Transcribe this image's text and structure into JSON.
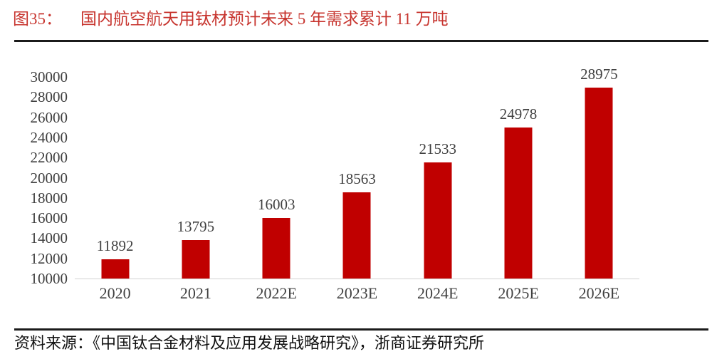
{
  "title": {
    "label": "图35：",
    "text": "国内航空航天用钛材预计未来 5 年需求累计 11 万吨"
  },
  "source": {
    "text": "资料来源：《中国钛合金材料及应用发展战略研究》，浙商证券研究所"
  },
  "chart_data": {
    "type": "bar",
    "title": "国内航空航天用钛材预计未来 5 年需求累计 11 万吨",
    "categories": [
      "2020",
      "2021",
      "2022E",
      "2023E",
      "2024E",
      "2025E",
      "2026E"
    ],
    "values": [
      11892,
      13795,
      16003,
      18563,
      21533,
      24978,
      28975
    ],
    "xlabel": "",
    "ylabel": "",
    "ylim": [
      10000,
      30000
    ],
    "yticks": [
      30000,
      28000,
      26000,
      24000,
      22000,
      20000,
      18000,
      16000,
      14000,
      12000,
      10000
    ],
    "grid": false,
    "legend": "none",
    "data_labels": true,
    "bar_color": "#C00000"
  },
  "colors": {
    "bar_red": "#C00000",
    "title_red": "#C7342E",
    "rule_black": "#1b1b1b",
    "axis_text": "#404040",
    "baseline_gray": "#d2d2d2",
    "background": "#ffffff"
  }
}
